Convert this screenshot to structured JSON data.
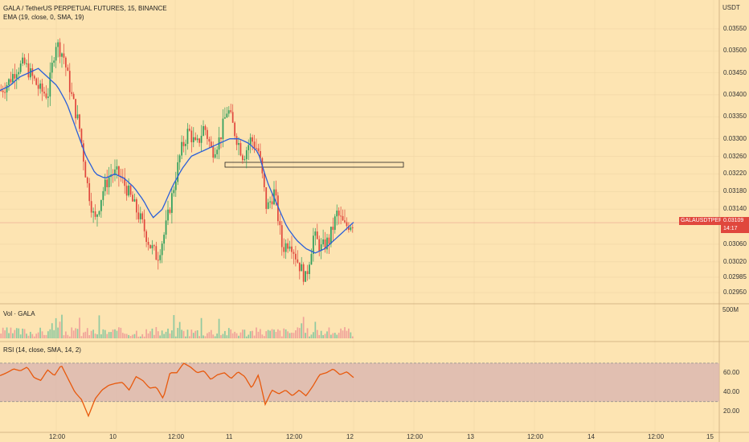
{
  "header": {
    "symbol_line": "GALA / TetherUS PERPETUAL FUTURES, 15, BINANCE",
    "ema_line": "EMA (19, close, 0, SMA, 19)",
    "vol_label": "Vol · GALA",
    "rsi_line": "RSI (14, close, SMA, 14, 2)"
  },
  "price_axis": {
    "unit": "USDT",
    "ticks": [
      "0.03550",
      "0.03500",
      "0.03450",
      "0.03400",
      "0.03350",
      "0.03300",
      "0.03260",
      "0.03220",
      "0.03180",
      "0.03140",
      "0.03060",
      "0.03020",
      "0.02985",
      "0.02950"
    ],
    "tick_values": [
      0.0355,
      0.035,
      0.0345,
      0.034,
      0.0335,
      0.033,
      0.0326,
      0.0322,
      0.0318,
      0.0314,
      0.0306,
      0.0302,
      0.02985,
      0.0295
    ]
  },
  "last_price": {
    "symbol_tag": "GALAUSDTPERP",
    "price": "0.03109",
    "countdown": "14:17",
    "value": 0.03109
  },
  "volume_axis": {
    "label": "500M"
  },
  "rsi_axis": {
    "ticks": [
      "60.00",
      "40.00",
      "20.00"
    ],
    "tick_values": [
      60,
      40,
      20
    ],
    "band": [
      30,
      70
    ]
  },
  "time_axis": {
    "labels": [
      "12:00",
      "10",
      "12:00",
      "11",
      "12:00",
      "12",
      "12:00",
      "13",
      "12:00",
      "14",
      "12:00",
      "15"
    ]
  },
  "colors": {
    "up": "#2e9e5b",
    "down": "#e0473d",
    "ema": "#2b5fd9",
    "rsi": "#e8590c",
    "rsi_band": "#d9b5b0",
    "tag": "#e0473d"
  },
  "chart_data": {
    "type": "candlestick",
    "ema_path": [
      0.0341,
      0.0342,
      0.0344,
      0.0345,
      0.0346,
      0.0344,
      0.0342,
      0.0338,
      0.0332,
      0.0326,
      0.0322,
      0.0321,
      0.0322,
      0.0321,
      0.0319,
      0.0316,
      0.0312,
      0.0314,
      0.0319,
      0.0323,
      0.0326,
      0.0327,
      0.0328,
      0.0329,
      0.033,
      0.033,
      0.0329,
      0.0327,
      0.032,
      0.0315,
      0.031,
      0.0307,
      0.0305,
      0.0304,
      0.0305,
      0.0307,
      0.0309,
      0.0311
    ],
    "close_path": [
      0.0341,
      0.0343,
      0.0346,
      0.0347,
      0.0344,
      0.0341,
      0.034,
      0.0352,
      0.0349,
      0.034,
      0.0333,
      0.032,
      0.0311,
      0.0318,
      0.0322,
      0.0322,
      0.0319,
      0.0315,
      0.0311,
      0.0306,
      0.0303,
      0.0309,
      0.0318,
      0.0327,
      0.0332,
      0.0328,
      0.0333,
      0.0327,
      0.033,
      0.0337,
      0.0331,
      0.0326,
      0.033,
      0.0327,
      0.0314,
      0.0318,
      0.0305,
      0.0307,
      0.0302,
      0.0298,
      0.0308,
      0.0305,
      0.0307,
      0.0313,
      0.031,
      0.0311
    ],
    "rsi_path": [
      57,
      60,
      64,
      62,
      66,
      55,
      52,
      63,
      57,
      68,
      54,
      40,
      32,
      15,
      33,
      42,
      47,
      49,
      50,
      42,
      56,
      52,
      44,
      45,
      33,
      60,
      60,
      70,
      66,
      60,
      62,
      53,
      58,
      60,
      54,
      61,
      56,
      44,
      58,
      27,
      42,
      38,
      42,
      36,
      42,
      36,
      46,
      58,
      60,
      64,
      58,
      61,
      55
    ]
  }
}
